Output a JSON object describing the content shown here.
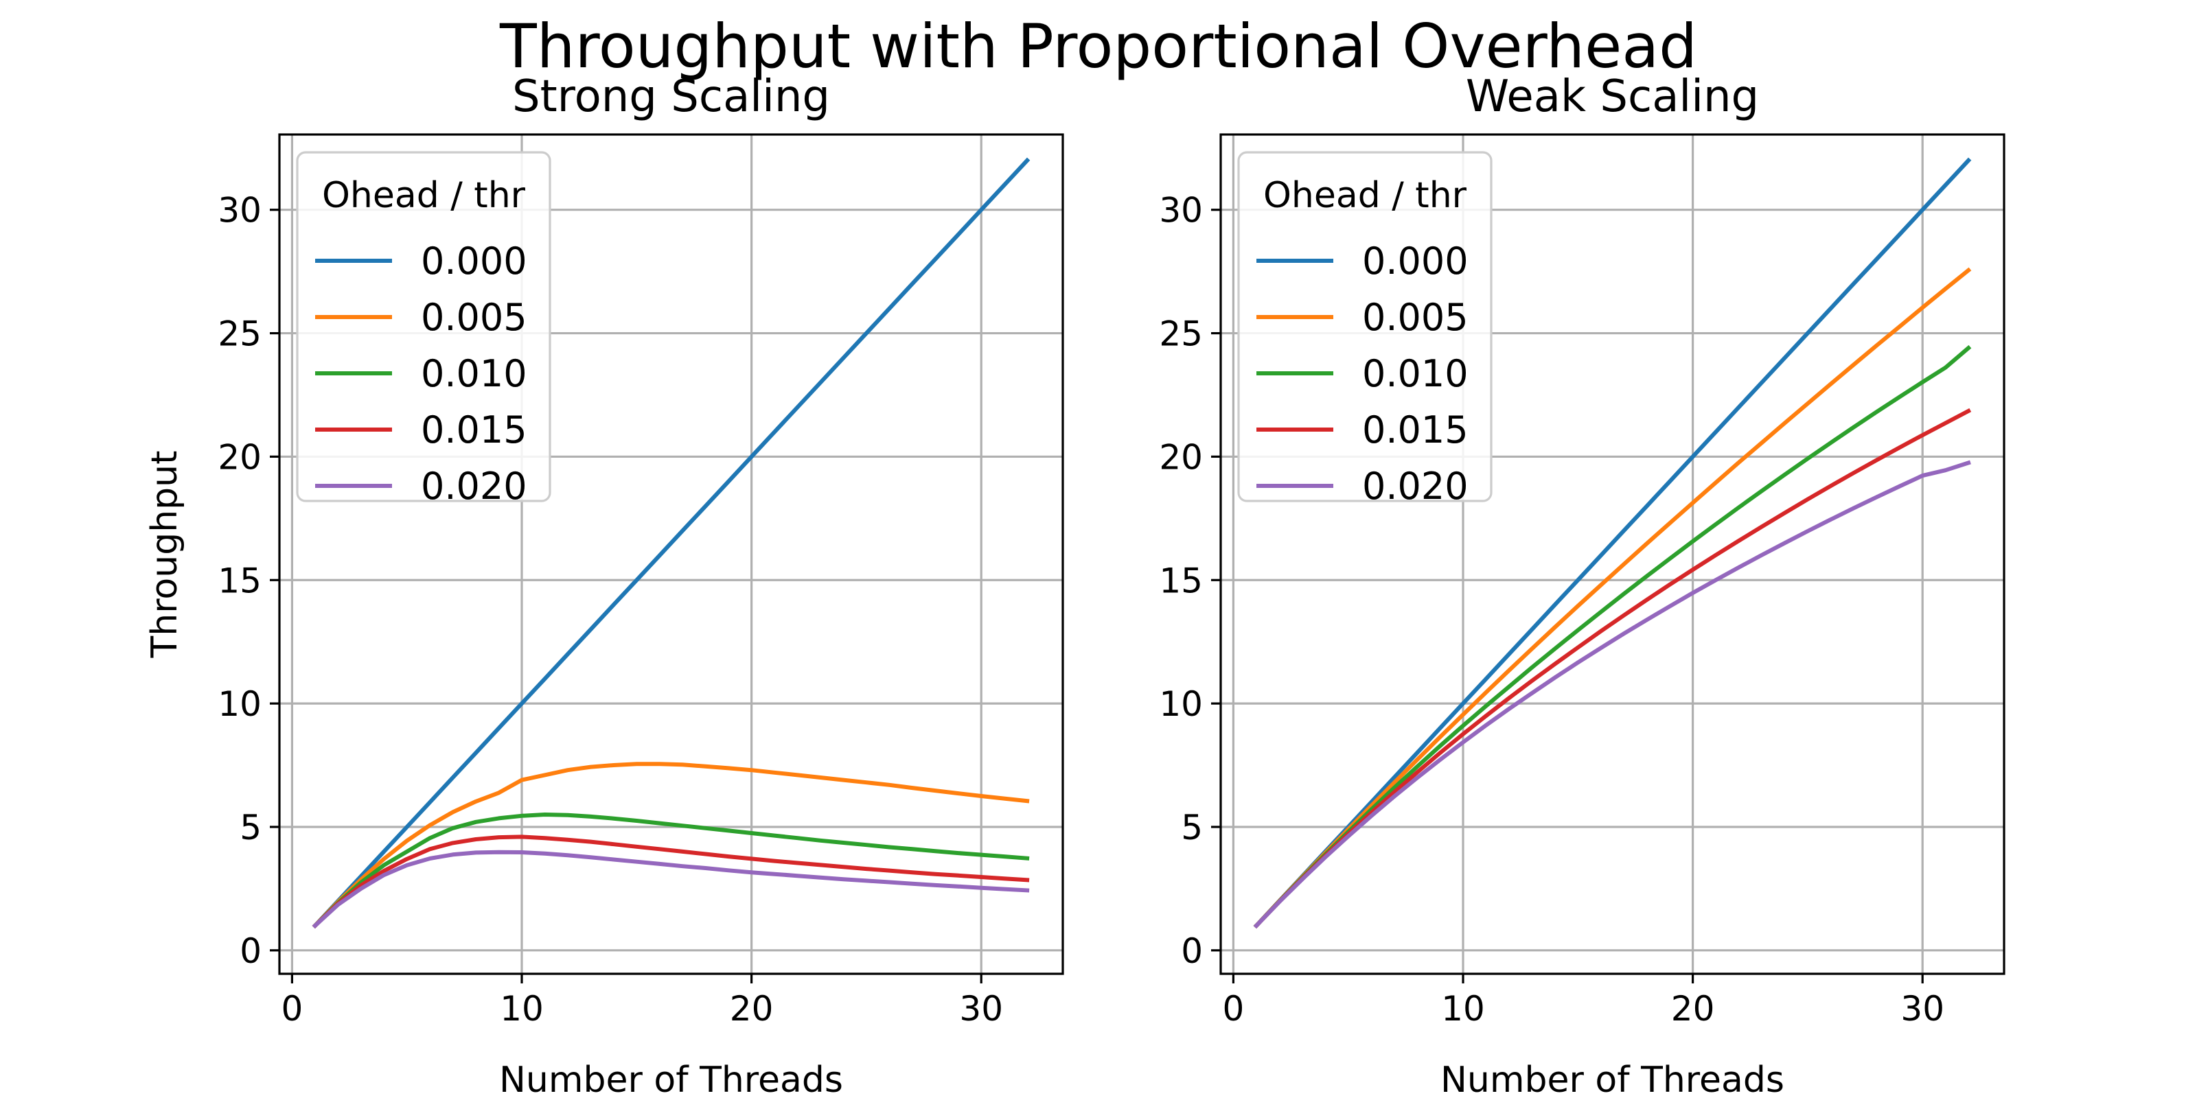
{
  "figure": {
    "title": "Throughput with Proportional Overhead"
  },
  "chart_data": [
    {
      "type": "line",
      "title": "Strong Scaling",
      "xlabel": "Number of Threads",
      "ylabel": "Throughput",
      "xlim": [
        -0.55,
        33.55
      ],
      "ylim": [
        -0.95,
        33.05
      ],
      "xticks": [
        0,
        10,
        20,
        30
      ],
      "yticks": [
        0,
        5,
        10,
        15,
        20,
        25,
        30
      ],
      "grid": true,
      "legend": {
        "title": "Ohead / thr",
        "position": "top-left"
      },
      "x": [
        1,
        2,
        3,
        4,
        5,
        6,
        7,
        8,
        9,
        10,
        11,
        12,
        13,
        14,
        15,
        16,
        17,
        18,
        19,
        20,
        21,
        22,
        23,
        24,
        25,
        26,
        27,
        28,
        29,
        30,
        31,
        32
      ],
      "series": [
        {
          "name": "0.000",
          "color": "#1f77b4",
          "values": [
            1,
            2,
            3,
            4,
            5,
            6,
            7,
            8,
            9,
            10,
            11,
            12,
            13,
            14,
            15,
            16,
            17,
            18,
            19,
            20,
            21,
            22,
            23,
            24,
            25,
            26,
            27,
            28,
            29,
            30,
            31,
            32
          ]
        },
        {
          "name": "0.005",
          "color": "#ff7f0e",
          "values": [
            1,
            1.96,
            2.87,
            3.7,
            4.44,
            5.07,
            5.6,
            6.03,
            6.38,
            6.9,
            7.1,
            7.3,
            7.43,
            7.5,
            7.55,
            7.55,
            7.52,
            7.45,
            7.38,
            7.3,
            7.2,
            7.1,
            7.0,
            6.9,
            6.8,
            6.7,
            6.58,
            6.47,
            6.36,
            6.25,
            6.15,
            6.05
          ]
        },
        {
          "name": "0.010",
          "color": "#2ca02c",
          "values": [
            1,
            1.92,
            2.75,
            3.45,
            4.0,
            4.55,
            4.95,
            5.2,
            5.35,
            5.45,
            5.5,
            5.48,
            5.42,
            5.34,
            5.25,
            5.15,
            5.05,
            4.95,
            4.85,
            4.75,
            4.65,
            4.55,
            4.45,
            4.36,
            4.27,
            4.18,
            4.1,
            4.02,
            3.94,
            3.87,
            3.8,
            3.73
          ]
        },
        {
          "name": "0.015",
          "color": "#d62728",
          "values": [
            1,
            1.89,
            2.63,
            3.22,
            3.7,
            4.1,
            4.35,
            4.5,
            4.58,
            4.6,
            4.55,
            4.48,
            4.4,
            4.3,
            4.2,
            4.1,
            4.0,
            3.9,
            3.8,
            3.71,
            3.62,
            3.54,
            3.46,
            3.38,
            3.3,
            3.23,
            3.16,
            3.09,
            3.03,
            2.97,
            2.91,
            2.85
          ]
        },
        {
          "name": "0.020",
          "color": "#9467bd",
          "values": [
            1,
            1.85,
            2.5,
            3.05,
            3.45,
            3.72,
            3.88,
            3.96,
            3.98,
            3.97,
            3.92,
            3.85,
            3.77,
            3.68,
            3.59,
            3.5,
            3.41,
            3.33,
            3.24,
            3.16,
            3.09,
            3.02,
            2.95,
            2.88,
            2.82,
            2.76,
            2.7,
            2.64,
            2.59,
            2.53,
            2.48,
            2.43
          ]
        }
      ]
    },
    {
      "type": "line",
      "title": "Weak Scaling",
      "xlabel": "Number of Threads",
      "ylabel": "",
      "xlim": [
        -0.55,
        33.55
      ],
      "ylim": [
        -0.95,
        33.05
      ],
      "xticks": [
        0,
        10,
        20,
        30
      ],
      "yticks": [
        0,
        5,
        10,
        15,
        20,
        25,
        30
      ],
      "grid": true,
      "legend": {
        "title": "Ohead / thr",
        "position": "top-left"
      },
      "x": [
        1,
        2,
        3,
        4,
        5,
        6,
        7,
        8,
        9,
        10,
        11,
        12,
        13,
        14,
        15,
        16,
        17,
        18,
        19,
        20,
        21,
        22,
        23,
        24,
        25,
        26,
        27,
        28,
        29,
        30,
        31,
        32
      ],
      "series": [
        {
          "name": "0.000",
          "color": "#1f77b4",
          "values": [
            1,
            2,
            3,
            4,
            5,
            6,
            7,
            8,
            9,
            10,
            11,
            12,
            13,
            14,
            15,
            16,
            17,
            18,
            19,
            20,
            21,
            22,
            23,
            24,
            25,
            26,
            27,
            28,
            29,
            30,
            31,
            32
          ]
        },
        {
          "name": "0.005",
          "color": "#ff7f0e",
          "values": [
            1,
            1.99,
            2.97,
            3.94,
            4.9,
            5.85,
            6.79,
            7.72,
            8.64,
            9.55,
            10.45,
            11.34,
            12.22,
            13.09,
            13.95,
            14.8,
            15.64,
            16.48,
            17.31,
            18.13,
            18.95,
            19.76,
            20.56,
            21.36,
            22.15,
            22.94,
            23.72,
            24.5,
            25.27,
            26.04,
            26.8,
            27.55
          ]
        },
        {
          "name": "0.010",
          "color": "#2ca02c",
          "values": [
            1,
            1.98,
            2.94,
            3.88,
            4.8,
            5.7,
            6.58,
            7.44,
            8.28,
            9.1,
            9.9,
            10.68,
            11.46,
            12.22,
            12.97,
            13.71,
            14.44,
            15.16,
            15.87,
            16.57,
            17.26,
            17.94,
            18.61,
            19.27,
            19.92,
            20.56,
            21.19,
            21.81,
            22.42,
            23.02,
            23.61,
            24.4
          ]
        },
        {
          "name": "0.015",
          "color": "#d62728",
          "values": [
            1,
            1.97,
            2.91,
            3.82,
            4.71,
            5.57,
            6.4,
            7.21,
            8.0,
            8.76,
            9.5,
            10.22,
            10.92,
            11.6,
            12.27,
            12.93,
            13.57,
            14.2,
            14.82,
            15.42,
            16.01,
            16.59,
            17.16,
            17.72,
            18.27,
            18.81,
            19.34,
            19.86,
            20.37,
            20.87,
            21.36,
            21.85
          ]
        },
        {
          "name": "0.020",
          "color": "#9467bd",
          "values": [
            1,
            1.96,
            2.88,
            3.77,
            4.62,
            5.44,
            6.23,
            6.99,
            7.72,
            8.43,
            9.12,
            9.78,
            10.42,
            11.05,
            11.66,
            12.25,
            12.83,
            13.39,
            13.94,
            14.48,
            15.0,
            15.51,
            16.01,
            16.5,
            16.98,
            17.45,
            17.91,
            18.36,
            18.8,
            19.23,
            19.45,
            19.75
          ]
        }
      ]
    }
  ]
}
